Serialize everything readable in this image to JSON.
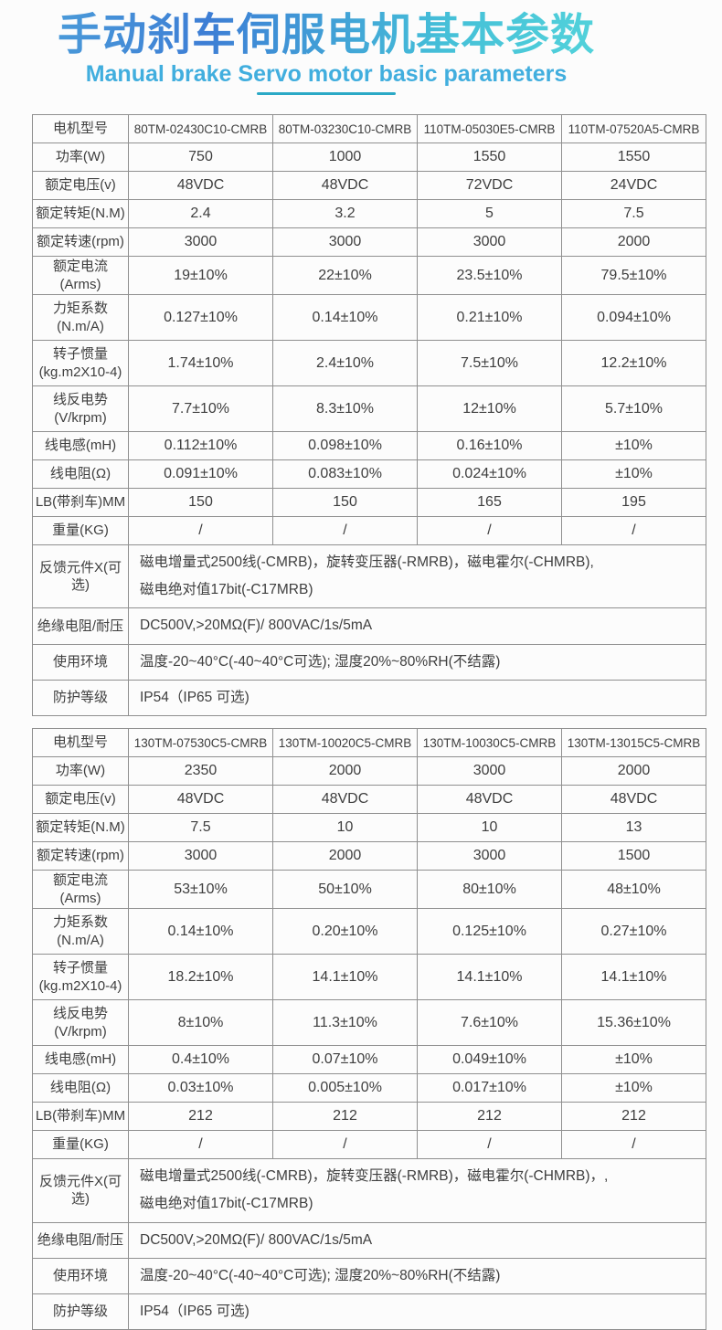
{
  "title": {
    "zh": "手动刹车伺服电机基本参数",
    "en": "Manual brake Servo motor basic parameters"
  },
  "theme": {
    "background": "#fcfcfc",
    "border_color": "#8f8f8f",
    "text_color": "#3e3e3e",
    "subtitle_color": "#41aede",
    "underline_color": "#2ba9c6",
    "title_gradient": [
      "#4a9ad9",
      "#3d7ed5",
      "#45c0d8",
      "#52d2da"
    ]
  },
  "tables": [
    {
      "rows": [
        {
          "label": "电机型号",
          "values": [
            "80TM-02430C10-CMRB",
            "80TM-03230C10-CMRB",
            "110TM-05030E5-CMRB",
            "110TM-07520A5-CMRB"
          ]
        },
        {
          "label": "功率(W)",
          "values": [
            "750",
            "1000",
            "1550",
            "1550"
          ]
        },
        {
          "label": "额定电压(v)",
          "values": [
            "48VDC",
            "48VDC",
            "72VDC",
            "24VDC"
          ]
        },
        {
          "label": "额定转矩(N.M)",
          "values": [
            "2.4",
            "3.2",
            "5",
            "7.5"
          ]
        },
        {
          "label": "额定转速(rpm)",
          "values": [
            "3000",
            "3000",
            "3000",
            "2000"
          ]
        },
        {
          "label": "额定电流(Arms)",
          "values": [
            "19±10%",
            "22±10%",
            "23.5±10%",
            "79.5±10%"
          ]
        },
        {
          "label": "力矩系数\n(N.m/A)",
          "values": [
            "0.127±10%",
            "0.14±10%",
            "0.21±10%",
            "0.094±10%"
          ]
        },
        {
          "label": "转子惯量\n(kg.m2X10-4)",
          "values": [
            "1.74±10%",
            "2.4±10%",
            "7.5±10%",
            "12.2±10%"
          ]
        },
        {
          "label": "线反电势\n(V/krpm)",
          "values": [
            "7.7±10%",
            "8.3±10%",
            "12±10%",
            "5.7±10%"
          ]
        },
        {
          "label": "线电感(mH)",
          "values": [
            "0.112±10%",
            "0.098±10%",
            "0.16±10%",
            "±10%"
          ]
        },
        {
          "label": "线电阻(Ω)",
          "values": [
            "0.091±10%",
            "0.083±10%",
            "0.024±10%",
            "±10%"
          ]
        },
        {
          "label": "LB(带刹车)MM",
          "values": [
            "150",
            "150",
            "165",
            "195"
          ]
        },
        {
          "label": "重量(KG)",
          "values": [
            "/",
            "/",
            "/",
            "/"
          ]
        },
        {
          "label": "反馈元件X(可选)",
          "merged": [
            "磁电增量式2500线(-CMRB)，旋转变压器(-RMRB)，磁电霍尔(-CHMRB),",
            "磁电绝对值17bit(-C17MRB)"
          ]
        },
        {
          "label": "绝缘电阻/耐压",
          "merged": [
            "DC500V,>20MΩ(F)/ 800VAC/1s/5mA"
          ]
        },
        {
          "label": "使用环境",
          "merged": [
            "温度-20~40°C(-40~40°C可选); 湿度20%~80%RH(不结露)"
          ]
        },
        {
          "label": "防护等级",
          "merged": [
            "IP54（IP65 可选)"
          ]
        }
      ]
    },
    {
      "rows": [
        {
          "label": "电机型号",
          "values": [
            "130TM-07530C5-CMRB",
            "130TM-10020C5-CMRB",
            "130TM-10030C5-CMRB",
            "130TM-13015C5-CMRB"
          ]
        },
        {
          "label": "功率(W)",
          "values": [
            "2350",
            "2000",
            "3000",
            "2000"
          ]
        },
        {
          "label": "额定电压(v)",
          "values": [
            "48VDC",
            "48VDC",
            "48VDC",
            "48VDC"
          ]
        },
        {
          "label": "额定转矩(N.M)",
          "values": [
            "7.5",
            "10",
            "10",
            "13"
          ]
        },
        {
          "label": "额定转速(rpm)",
          "values": [
            "3000",
            "2000",
            "3000",
            "1500"
          ]
        },
        {
          "label": "额定电流(Arms)",
          "values": [
            "53±10%",
            "50±10%",
            "80±10%",
            "48±10%"
          ]
        },
        {
          "label": "力矩系数\n(N.m/A)",
          "values": [
            "0.14±10%",
            "0.20±10%",
            "0.125±10%",
            "0.27±10%"
          ]
        },
        {
          "label": "转子惯量\n(kg.m2X10-4)",
          "values": [
            "18.2±10%",
            "14.1±10%",
            "14.1±10%",
            "14.1±10%"
          ]
        },
        {
          "label": "线反电势\n(V/krpm)",
          "values": [
            "8±10%",
            "11.3±10%",
            "7.6±10%",
            "15.36±10%"
          ]
        },
        {
          "label": "线电感(mH)",
          "values": [
            "0.4±10%",
            "0.07±10%",
            "0.049±10%",
            "±10%"
          ]
        },
        {
          "label": "线电阻(Ω)",
          "values": [
            "0.03±10%",
            "0.005±10%",
            "0.017±10%",
            "±10%"
          ]
        },
        {
          "label": "LB(带刹车)MM",
          "values": [
            "212",
            "212",
            "212",
            "212"
          ]
        },
        {
          "label": "重量(KG)",
          "values": [
            "/",
            "/",
            "/",
            "/"
          ]
        },
        {
          "label": "反馈元件X(可选)",
          "merged": [
            "磁电增量式2500线(-CMRB)，旋转变压器(-RMRB)，磁电霍尔(-CHMRB)，,",
            "磁电绝对值17bit(-C17MRB)"
          ]
        },
        {
          "label": "绝缘电阻/耐压",
          "merged": [
            "DC500V,>20MΩ(F)/ 800VAC/1s/5mA"
          ]
        },
        {
          "label": "使用环境",
          "merged": [
            "温度-20~40°C(-40~40°C可选); 湿度20%~80%RH(不结露)"
          ]
        },
        {
          "label": "防护等级",
          "merged": [
            "IP54（IP65 可选)"
          ]
        }
      ]
    }
  ]
}
